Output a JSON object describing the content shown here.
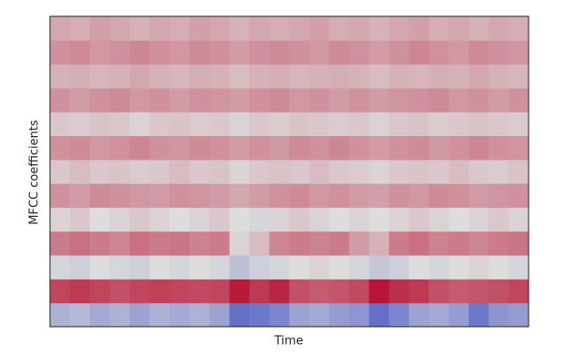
{
  "chart_data": {
    "type": "heatmap",
    "xlabel": "Time",
    "ylabel": "MFCC coefficients",
    "zlim": [
      -1,
      1
    ],
    "colors": [
      "#3b4cc0",
      "#dddddd",
      "#b40426"
    ],
    "values": [
      [
        -0.3,
        -0.25,
        -0.35,
        -0.3,
        -0.4,
        -0.3,
        -0.35,
        -0.3,
        -0.4,
        -0.75,
        -0.7,
        -0.6,
        -0.4,
        -0.35,
        -0.45,
        -0.5,
        -0.75,
        -0.6,
        -0.4,
        -0.35,
        -0.45,
        -0.7,
        -0.5,
        -0.45
      ],
      [
        0.7,
        0.75,
        0.7,
        0.65,
        0.7,
        0.72,
        0.7,
        0.68,
        0.7,
        0.9,
        0.75,
        0.85,
        0.65,
        0.6,
        0.62,
        0.68,
        0.92,
        0.8,
        0.75,
        0.65,
        0.6,
        0.62,
        0.65,
        0.7
      ],
      [
        -0.05,
        -0.1,
        0,
        -0.05,
        -0.1,
        0,
        -0.05,
        0,
        -0.05,
        -0.2,
        -0.1,
        -0.05,
        0,
        0.05,
        0,
        -0.05,
        -0.15,
        -0.1,
        0,
        -0.05,
        0,
        0.05,
        0,
        -0.05
      ],
      [
        0.45,
        0.5,
        0.45,
        0.4,
        0.5,
        0.45,
        0.48,
        0.42,
        0.45,
        0.05,
        0.15,
        0.4,
        0.45,
        0.42,
        0.45,
        0.3,
        0.2,
        0.45,
        0.5,
        0.42,
        0.45,
        0.4,
        0.45,
        0.48
      ],
      [
        0.05,
        0.1,
        0,
        0.05,
        0.1,
        0.05,
        0,
        0.05,
        0.1,
        0,
        -0.05,
        0.05,
        0.1,
        0.05,
        0,
        0.05,
        0,
        0.05,
        0.1,
        0.05,
        0,
        0.05,
        0.1,
        0.05
      ],
      [
        0.35,
        0.3,
        0.38,
        0.35,
        0.32,
        0.3,
        0.35,
        0.33,
        0.3,
        0.25,
        0.3,
        0.35,
        0.38,
        0.32,
        0.35,
        0.3,
        0.28,
        0.35,
        0.32,
        0.38,
        0.35,
        0.3,
        0.33,
        0.35
      ],
      [
        0.1,
        0.15,
        0.1,
        0.12,
        0.08,
        0.1,
        0.15,
        0.1,
        0.12,
        0.05,
        0.1,
        0.12,
        0.1,
        0.15,
        0.1,
        0.08,
        0.05,
        0.1,
        0.12,
        0.1,
        0.15,
        0.1,
        0.08,
        0.12
      ],
      [
        0.35,
        0.38,
        0.32,
        0.35,
        0.4,
        0.35,
        0.33,
        0.38,
        0.35,
        0.3,
        0.35,
        0.32,
        0.38,
        0.35,
        0.4,
        0.35,
        0.3,
        0.35,
        0.38,
        0.32,
        0.35,
        0.4,
        0.35,
        0.33
      ],
      [
        0.1,
        0.08,
        0.12,
        0.1,
        0.05,
        0.1,
        0.12,
        0.08,
        0.1,
        0.05,
        0.1,
        0.08,
        0.12,
        0.1,
        0.08,
        0.1,
        0.05,
        0.1,
        0.12,
        0.08,
        0.1,
        0.12,
        0.1,
        0.08
      ],
      [
        0.35,
        0.3,
        0.35,
        0.38,
        0.32,
        0.35,
        0.3,
        0.35,
        0.33,
        0.3,
        0.35,
        0.38,
        0.32,
        0.35,
        0.3,
        0.35,
        0.3,
        0.33,
        0.35,
        0.38,
        0.32,
        0.35,
        0.3,
        0.35
      ],
      [
        0.2,
        0.22,
        0.18,
        0.2,
        0.25,
        0.2,
        0.18,
        0.22,
        0.2,
        0.15,
        0.2,
        0.22,
        0.18,
        0.2,
        0.22,
        0.2,
        0.15,
        0.2,
        0.18,
        0.22,
        0.2,
        0.25,
        0.2,
        0.18
      ],
      [
        0.35,
        0.38,
        0.32,
        0.35,
        0.4,
        0.35,
        0.32,
        0.38,
        0.35,
        0.3,
        0.35,
        0.38,
        0.35,
        0.32,
        0.38,
        0.35,
        0.3,
        0.35,
        0.4,
        0.35,
        0.32,
        0.38,
        0.35,
        0.33
      ],
      [
        0.25,
        0.22,
        0.28,
        0.25,
        0.2,
        0.25,
        0.22,
        0.28,
        0.25,
        0.2,
        0.25,
        0.22,
        0.25,
        0.28,
        0.22,
        0.25,
        0.2,
        0.25,
        0.28,
        0.22,
        0.25,
        0.2,
        0.25,
        0.22
      ]
    ]
  }
}
